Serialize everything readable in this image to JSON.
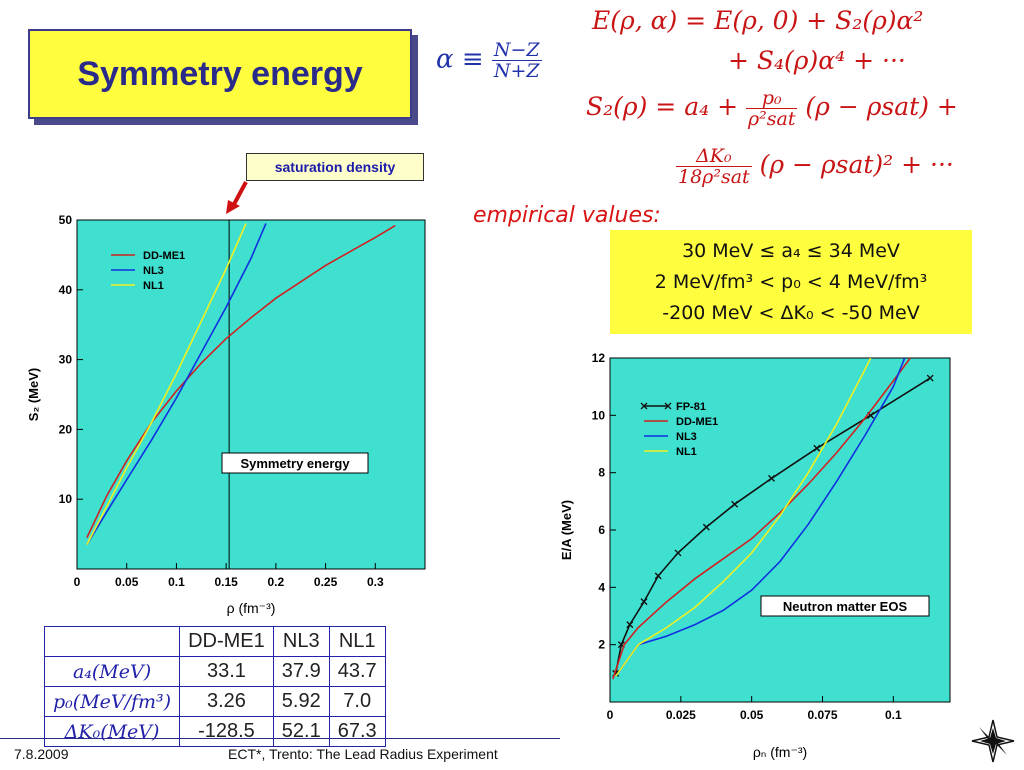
{
  "slide": {
    "title": "Symmetry energy",
    "alpha_definition": {
      "lhs": "α ≡",
      "num": "N−Z",
      "den": "N+Z"
    },
    "equations": {
      "line1": "E(ρ, α) = E(ρ, 0) + S₂(ρ)α²",
      "line2": "+ S₄(ρ)α⁴ + ···",
      "line3_lhs": "S₂(ρ) = a₄ +",
      "line3_frac_num": "p₀",
      "line3_frac_den": "ρ²sat",
      "line3_rhs": "(ρ − ρsat) +",
      "line4_frac_num": "ΔK₀",
      "line4_frac_den": "18ρ²sat",
      "line4_rhs": "(ρ − ρsat)² + ···"
    },
    "saturation_label": "saturation density",
    "empirical_title": "empirical values:",
    "empirical_lines": [
      "30 MeV ≤ a₄ ≤ 34 MeV",
      "2 MeV/fm³ < p₀ < 4 MeV/fm³",
      "-200 MeV < ΔK₀ < -50 MeV"
    ],
    "footer_date": "7.8.2009",
    "footer_text": "ECT*, Trento: The Lead Radius Experiment"
  },
  "table": {
    "headers": [
      "",
      "DD-ME1",
      "NL3",
      "NL1"
    ],
    "rows": [
      {
        "label": "a₄(MeV)",
        "values": [
          "33.1",
          "37.9",
          "43.7"
        ]
      },
      {
        "label": "p₀(MeV/fm³)",
        "values": [
          "3.26",
          "5.92",
          "7.0"
        ]
      },
      {
        "label": "ΔK₀(MeV)",
        "values": [
          "-128.5",
          "52.1",
          "67.3"
        ]
      }
    ]
  },
  "colors": {
    "plot_bg": "#40e0d0",
    "ddme1": "#d02020",
    "nl3": "#1030e0",
    "nl1": "#f0f020",
    "fp81": "#111111",
    "title_bg": "#fefe3e"
  },
  "chart_data": [
    {
      "type": "line",
      "title": "",
      "annotation": "Symmetry energy",
      "xlabel": "ρ (fm⁻³)",
      "ylabel": "S₂ (MeV)",
      "xlim": [
        0,
        0.35
      ],
      "ylim": [
        0,
        50
      ],
      "xticks": [
        "0",
        "0.05",
        "0.1",
        "0.15",
        "0.2",
        "0.25",
        "0.3"
      ],
      "yticks": [
        "10",
        "20",
        "30",
        "40",
        "50"
      ],
      "vline_x": 0.153,
      "legend_position": "top-left",
      "series": [
        {
          "name": "DD-ME1",
          "color": "#d02020",
          "points": [
            [
              0.01,
              4.5
            ],
            [
              0.03,
              10.5
            ],
            [
              0.05,
              15.5
            ],
            [
              0.075,
              21
            ],
            [
              0.1,
              25.5
            ],
            [
              0.125,
              29.5
            ],
            [
              0.15,
              33
            ],
            [
              0.175,
              36
            ],
            [
              0.2,
              38.8
            ],
            [
              0.25,
              43.5
            ],
            [
              0.3,
              47.5
            ],
            [
              0.32,
              49.2
            ]
          ]
        },
        {
          "name": "NL3",
          "color": "#1030e0",
          "points": [
            [
              0.01,
              3.5
            ],
            [
              0.03,
              8.2
            ],
            [
              0.05,
              12.8
            ],
            [
              0.075,
              18.5
            ],
            [
              0.1,
              24.5
            ],
            [
              0.125,
              31
            ],
            [
              0.15,
              37.5
            ],
            [
              0.175,
              44.5
            ],
            [
              0.19,
              49.5
            ]
          ]
        },
        {
          "name": "NL1",
          "color": "#f0f020",
          "points": [
            [
              0.01,
              3.5
            ],
            [
              0.03,
              9
            ],
            [
              0.05,
              14.5
            ],
            [
              0.075,
              21
            ],
            [
              0.1,
              28
            ],
            [
              0.125,
              35.5
            ],
            [
              0.15,
              43
            ],
            [
              0.17,
              49.5
            ]
          ]
        }
      ]
    },
    {
      "type": "line",
      "title": "",
      "annotation": "Neutron matter EOS",
      "xlabel": "ρₙ (fm⁻³)",
      "ylabel": "E/A (MeV)",
      "xlim": [
        0,
        0.12
      ],
      "ylim": [
        0,
        12
      ],
      "xticks": [
        "0",
        "0.025",
        "0.05",
        "0.075",
        "0.1"
      ],
      "yticks": [
        "2",
        "4",
        "6",
        "8",
        "10",
        "12"
      ],
      "legend_position": "top-left",
      "series": [
        {
          "name": "FP-81",
          "color": "#111111",
          "markers": true,
          "points": [
            [
              0.002,
              1.0
            ],
            [
              0.004,
              2.0
            ],
            [
              0.007,
              2.7
            ],
            [
              0.012,
              3.5
            ],
            [
              0.017,
              4.4
            ],
            [
              0.024,
              5.2
            ],
            [
              0.034,
              6.1
            ],
            [
              0.044,
              6.9
            ],
            [
              0.057,
              7.8
            ],
            [
              0.073,
              8.85
            ],
            [
              0.092,
              10.0
            ],
            [
              0.113,
              11.3
            ]
          ]
        },
        {
          "name": "DD-ME1",
          "color": "#d02020",
          "points": [
            [
              0.001,
              0.8
            ],
            [
              0.005,
              2.0
            ],
            [
              0.01,
              2.6
            ],
            [
              0.02,
              3.5
            ],
            [
              0.03,
              4.3
            ],
            [
              0.04,
              5.0
            ],
            [
              0.05,
              5.7
            ],
            [
              0.06,
              6.6
            ],
            [
              0.07,
              7.6
            ],
            [
              0.08,
              8.7
            ],
            [
              0.09,
              9.9
            ],
            [
              0.1,
              11.2
            ],
            [
              0.106,
              12
            ]
          ]
        },
        {
          "name": "NL3",
          "color": "#1030e0",
          "points": [
            [
              0.002,
              0.9
            ],
            [
              0.01,
              2.0
            ],
            [
              0.02,
              2.3
            ],
            [
              0.03,
              2.7
            ],
            [
              0.04,
              3.2
            ],
            [
              0.05,
              3.9
            ],
            [
              0.06,
              4.9
            ],
            [
              0.07,
              6.2
            ],
            [
              0.08,
              7.7
            ],
            [
              0.09,
              9.3
            ],
            [
              0.1,
              11.0
            ],
            [
              0.104,
              12
            ]
          ]
        },
        {
          "name": "NL1",
          "color": "#f0f020",
          "points": [
            [
              0.002,
              0.9
            ],
            [
              0.01,
              2.0
            ],
            [
              0.02,
              2.6
            ],
            [
              0.03,
              3.3
            ],
            [
              0.04,
              4.2
            ],
            [
              0.05,
              5.2
            ],
            [
              0.06,
              6.5
            ],
            [
              0.07,
              8.0
            ],
            [
              0.08,
              9.7
            ],
            [
              0.09,
              11.6
            ],
            [
              0.092,
              12
            ]
          ]
        }
      ]
    }
  ]
}
